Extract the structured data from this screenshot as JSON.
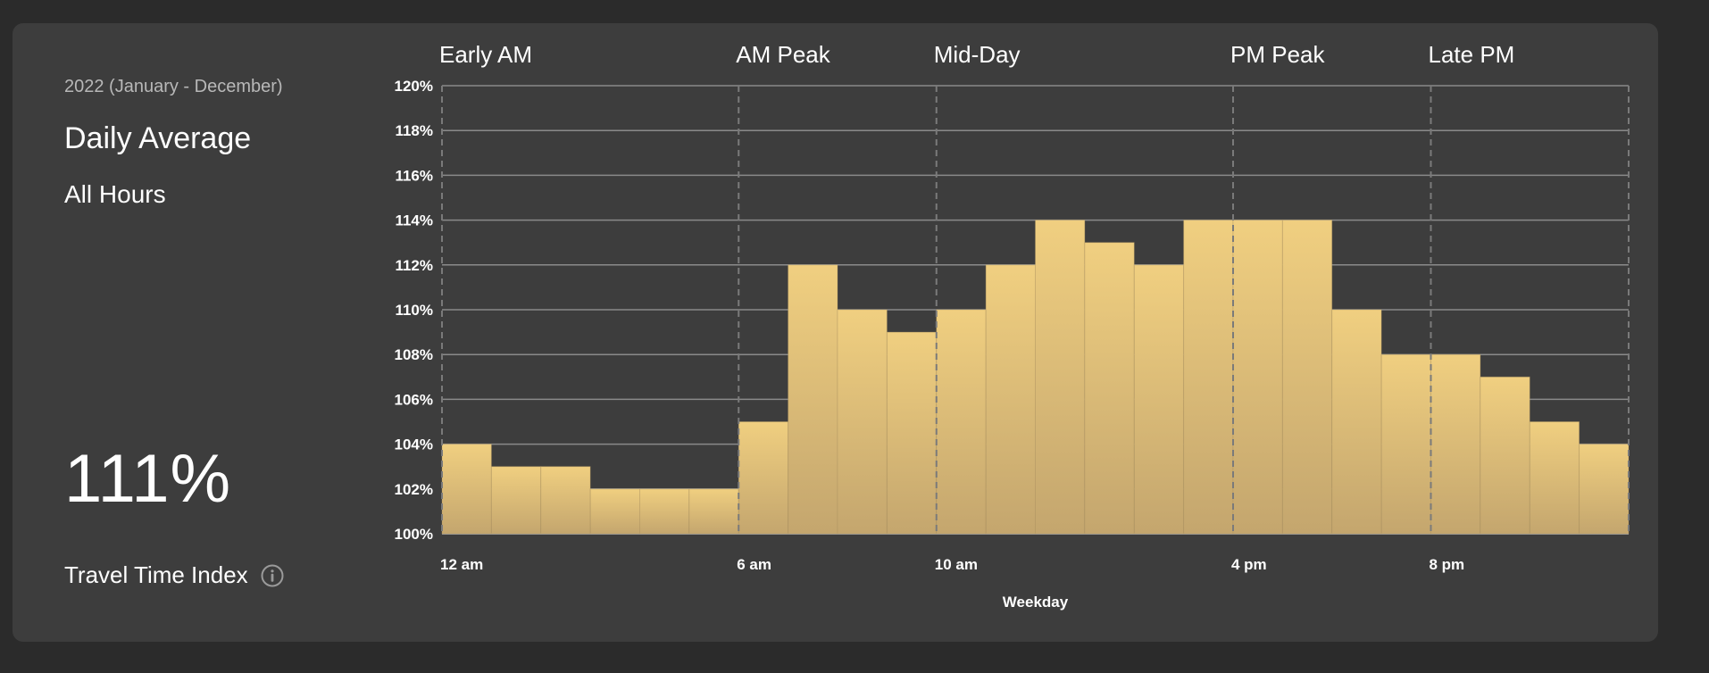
{
  "panel": {
    "period": "2022 (January - December)",
    "title": "Daily Average",
    "hours": "All Hours",
    "value": "111%",
    "metric_label": "Travel Time Index"
  },
  "icons": {
    "info": "info-circle-icon"
  },
  "colors": {
    "page_bg": "#2b2b2b",
    "card_bg": "#3d3d3d",
    "bar_top": "#f0cf80",
    "bar_bottom": "#c4a66e",
    "grid": "#8a8a8a"
  },
  "chart_data": {
    "type": "bar",
    "x_title": "Weekday",
    "hours": [
      0,
      1,
      2,
      3,
      4,
      5,
      6,
      7,
      8,
      9,
      10,
      11,
      12,
      13,
      14,
      15,
      16,
      17,
      18,
      19,
      20,
      21,
      22,
      23
    ],
    "values": [
      104,
      103,
      103,
      102,
      102,
      102,
      105,
      112,
      110,
      109,
      110,
      112,
      114,
      113,
      112,
      114,
      114,
      114,
      110,
      108,
      108,
      107,
      105,
      104
    ],
    "ylim": [
      100,
      120
    ],
    "y_ticks": [
      "100%",
      "102%",
      "104%",
      "106%",
      "108%",
      "110%",
      "112%",
      "114%",
      "116%",
      "118%",
      "120%"
    ],
    "x_ticks": [
      {
        "hour": 0,
        "label": "12 am"
      },
      {
        "hour": 6,
        "label": "6 am"
      },
      {
        "hour": 10,
        "label": "10 am"
      },
      {
        "hour": 16,
        "label": "4 pm"
      },
      {
        "hour": 20,
        "label": "8 pm"
      }
    ],
    "periods": [
      {
        "hour": 0,
        "label": "Early AM"
      },
      {
        "hour": 6,
        "label": "AM Peak"
      },
      {
        "hour": 10,
        "label": "Mid-Day"
      },
      {
        "hour": 16,
        "label": "PM Peak"
      },
      {
        "hour": 20,
        "label": "Late PM"
      }
    ],
    "grid": true
  }
}
